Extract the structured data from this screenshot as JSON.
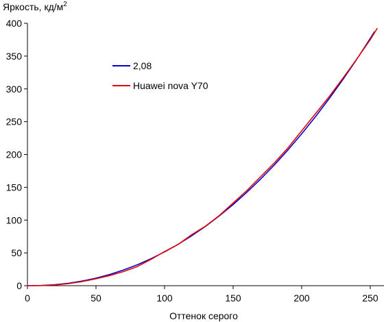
{
  "chart_data": {
    "type": "line",
    "title": "",
    "ylabel": "Яркость, кд/м",
    "ylabel_superscript": "2",
    "xlabel": "Оттенок серого",
    "xlim": [
      0,
      255
    ],
    "ylim": [
      0,
      400
    ],
    "xticks": [
      0,
      50,
      100,
      150,
      200,
      250
    ],
    "yticks": [
      0,
      50,
      100,
      150,
      200,
      250,
      300,
      350,
      400
    ],
    "grid": false,
    "legend_position": "upper-left",
    "series": [
      {
        "name": "2,08",
        "color": "#0000cc",
        "x": [
          0,
          10,
          20,
          30,
          40,
          50,
          60,
          70,
          80,
          90,
          100,
          110,
          120,
          130,
          140,
          150,
          160,
          170,
          180,
          190,
          200,
          210,
          220,
          230,
          240,
          250,
          253
        ],
        "y": [
          0,
          0.3,
          1.5,
          3.8,
          7.1,
          11.5,
          17.1,
          23.9,
          31.8,
          41,
          51.5,
          63.2,
          76.3,
          90.7,
          106.5,
          123.7,
          142.3,
          162.4,
          183.9,
          206.9,
          231.4,
          257.4,
          285,
          314,
          344.6,
          376.8,
          386.8
        ]
      },
      {
        "name": "Huawei nova Y70",
        "color": "#e00000",
        "x": [
          0,
          10,
          20,
          30,
          40,
          50,
          60,
          70,
          80,
          90,
          100,
          110,
          120,
          130,
          140,
          150,
          160,
          170,
          180,
          190,
          200,
          210,
          220,
          230,
          240,
          250,
          255
        ],
        "y": [
          0,
          0.2,
          1.2,
          3.2,
          6.4,
          10.5,
          15.5,
          21.5,
          29,
          40,
          52,
          63,
          78,
          91,
          107,
          126,
          145,
          166,
          187,
          210,
          236,
          262,
          288,
          316,
          345,
          375,
          392
        ]
      }
    ]
  }
}
